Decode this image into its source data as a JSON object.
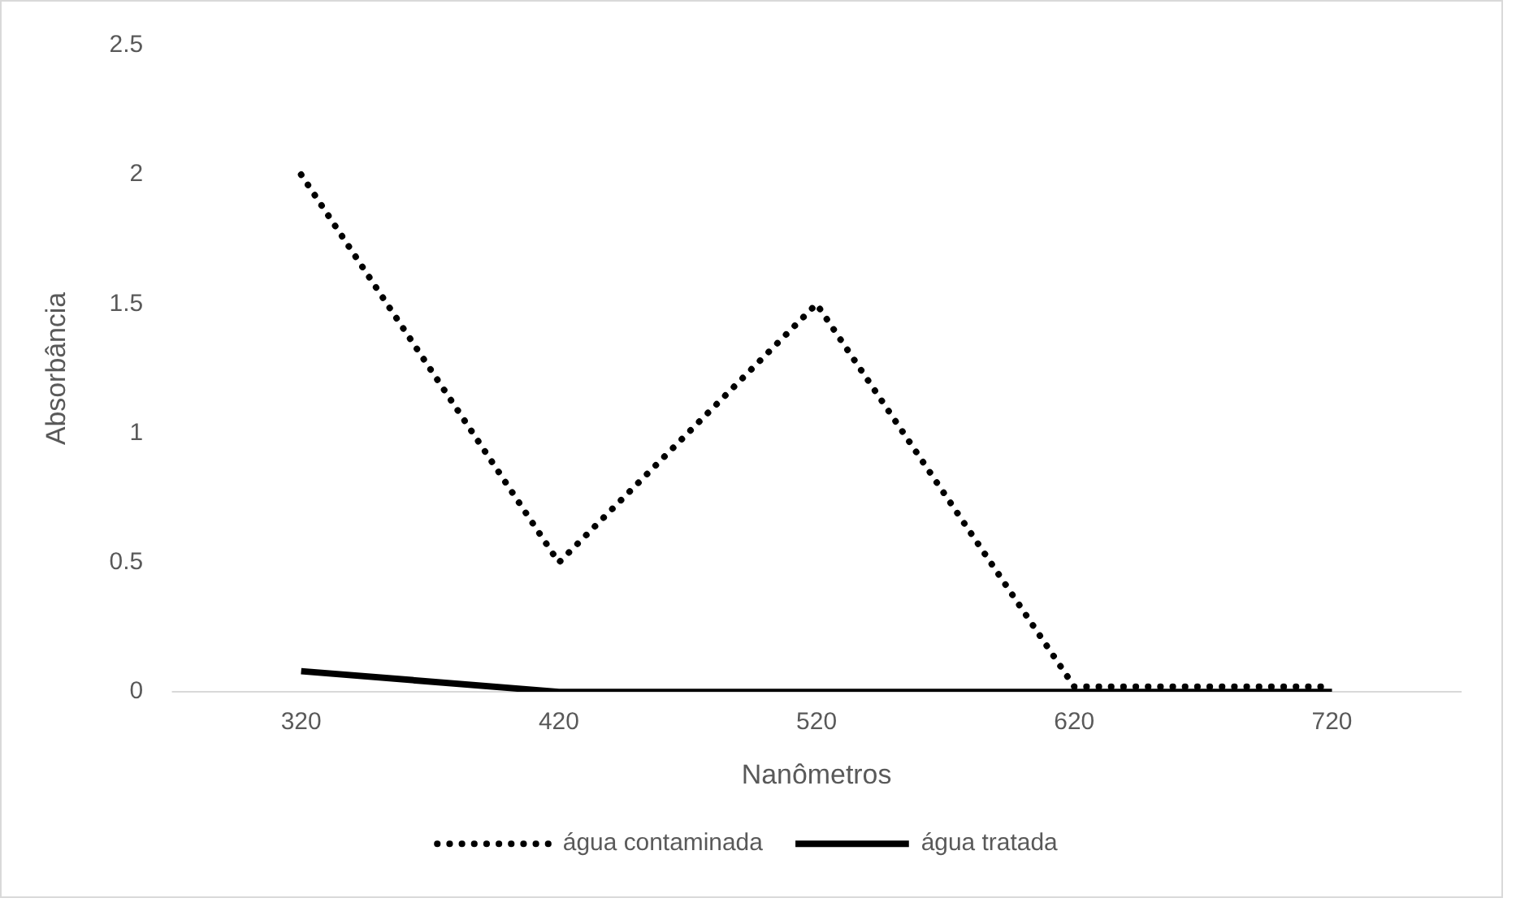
{
  "chart_data": {
    "type": "line",
    "xlabel": "Nanômetros",
    "ylabel": "Absorbância",
    "categories": [
      "320",
      "420",
      "520",
      "620",
      "720"
    ],
    "series": [
      {
        "name": "água contaminada",
        "color": "#000000",
        "line_style": "dotted",
        "values": [
          2,
          0.5,
          1.5,
          0.02,
          0.02
        ]
      },
      {
        "name": "água tratada",
        "color": "#000000",
        "line_style": "solid",
        "values": [
          0.08,
          0,
          0,
          0,
          0
        ]
      }
    ],
    "ylim": [
      0,
      2.5
    ],
    "yticks": [
      0,
      0.5,
      1,
      1.5,
      2,
      2.5
    ],
    "grid": false,
    "legend": "bottom",
    "marker": "none"
  }
}
